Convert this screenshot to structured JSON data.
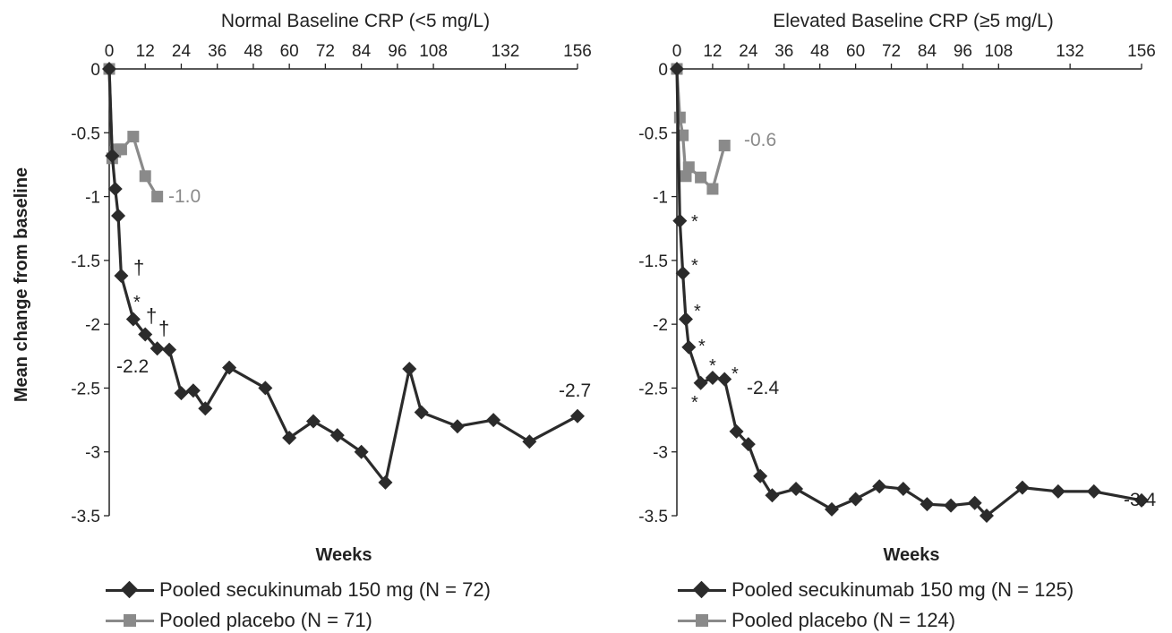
{
  "y_axis_title": "Mean change from baseline",
  "colors": {
    "secukinumab": "#2b2b2b",
    "placebo": "#8a8a8a"
  },
  "chart_data": [
    {
      "type": "line",
      "title": "Normal Baseline CRP (<5 mg/L)",
      "xlabel": "Weeks",
      "ylabel": "Mean change from baseline",
      "xlim": [
        0,
        156
      ],
      "ylim": [
        -3.5,
        0
      ],
      "x_ticks": [
        "0",
        "12",
        "24",
        "36",
        "48",
        "60",
        "72",
        "84",
        "96",
        "108",
        "132",
        "156"
      ],
      "y_ticks": [
        "0",
        "-0.5",
        "-1",
        "-1.5",
        "-2",
        "-2.5",
        "-3",
        "-3.5"
      ],
      "series": [
        {
          "name": "Pooled secukinumab 150 mg (N = 72)",
          "marker": "diamond",
          "x": [
            0,
            1,
            2,
            3,
            4,
            8,
            12,
            16,
            20,
            24,
            28,
            32,
            40,
            52,
            60,
            68,
            76,
            84,
            92,
            100,
            104,
            116,
            128,
            140,
            156
          ],
          "y": [
            0,
            -0.68,
            -0.94,
            -1.15,
            -1.62,
            -1.96,
            -2.08,
            -2.19,
            -2.2,
            -2.54,
            -2.52,
            -2.66,
            -2.34,
            -2.5,
            -2.89,
            -2.76,
            -2.87,
            -3.0,
            -3.24,
            -2.35,
            -2.69,
            -2.8,
            -2.75,
            -2.92,
            -2.72
          ]
        },
        {
          "name": "Pooled placebo (N = 71)",
          "marker": "square",
          "x": [
            0,
            1,
            2,
            3,
            4,
            8,
            12,
            16
          ],
          "y": [
            0,
            -0.7,
            -0.65,
            -0.63,
            -0.63,
            -0.53,
            -0.84,
            -1.0
          ]
        }
      ],
      "annotations": [
        {
          "text": "-1.0",
          "series": "placebo"
        },
        {
          "text": "†",
          "series": "secukinumab"
        },
        {
          "text": "*",
          "series": "secukinumab"
        },
        {
          "text": "†",
          "series": "secukinumab"
        },
        {
          "text": "†",
          "series": "secukinumab"
        },
        {
          "text": "-2.2",
          "series": "secukinumab"
        },
        {
          "text": "-2.7",
          "series": "secukinumab"
        }
      ],
      "legend": [
        {
          "label": "Pooled secukinumab 150 mg (N = 72)",
          "marker": "diamond"
        },
        {
          "label": "Pooled placebo (N = 71)",
          "marker": "square"
        }
      ]
    },
    {
      "type": "line",
      "title": "Elevated Baseline CRP (≥5 mg/L)",
      "xlabel": "Weeks",
      "ylabel": "Mean change from baseline",
      "xlim": [
        0,
        156
      ],
      "ylim": [
        -3.5,
        0
      ],
      "x_ticks": [
        "0",
        "12",
        "24",
        "36",
        "48",
        "60",
        "72",
        "84",
        "96",
        "108",
        "132",
        "156"
      ],
      "y_ticks": [
        "0",
        "-0.5",
        "-1",
        "-1.5",
        "-2",
        "-2.5",
        "-3",
        "-3.5"
      ],
      "series": [
        {
          "name": "Pooled secukinumab 150 mg (N = 125)",
          "marker": "diamond",
          "x": [
            0,
            1,
            2,
            3,
            4,
            8,
            12,
            16,
            20,
            24,
            28,
            32,
            40,
            52,
            60,
            68,
            76,
            84,
            92,
            100,
            104,
            116,
            128,
            140,
            156
          ],
          "y": [
            0,
            -1.19,
            -1.6,
            -1.96,
            -2.18,
            -2.46,
            -2.42,
            -2.43,
            -2.84,
            -2.94,
            -3.19,
            -3.34,
            -3.29,
            -3.45,
            -3.37,
            -3.27,
            -3.29,
            -3.41,
            -3.42,
            -3.4,
            -3.5,
            -3.28,
            -3.31,
            -3.31,
            -3.38
          ]
        },
        {
          "name": "Pooled placebo (N = 124)",
          "marker": "square",
          "x": [
            0,
            1,
            2,
            3,
            4,
            8,
            12,
            16
          ],
          "y": [
            0,
            -0.38,
            -0.52,
            -0.84,
            -0.77,
            -0.85,
            -0.94,
            -0.6
          ]
        }
      ],
      "annotations": [
        {
          "text": "-0.6",
          "series": "placebo"
        },
        {
          "text": "*",
          "series": "secukinumab"
        },
        {
          "text": "*",
          "series": "secukinumab"
        },
        {
          "text": "*",
          "series": "secukinumab"
        },
        {
          "text": "*",
          "series": "secukinumab"
        },
        {
          "text": "*",
          "series": "secukinumab"
        },
        {
          "text": "*",
          "series": "secukinumab"
        },
        {
          "text": "*",
          "series": "secukinumab"
        },
        {
          "text": "-2.4",
          "series": "secukinumab"
        },
        {
          "text": "-3.4",
          "series": "secukinumab"
        }
      ],
      "legend": [
        {
          "label": "Pooled secukinumab 150 mg (N = 125)",
          "marker": "diamond"
        },
        {
          "label": "Pooled placebo (N = 124)",
          "marker": "square"
        }
      ]
    }
  ]
}
